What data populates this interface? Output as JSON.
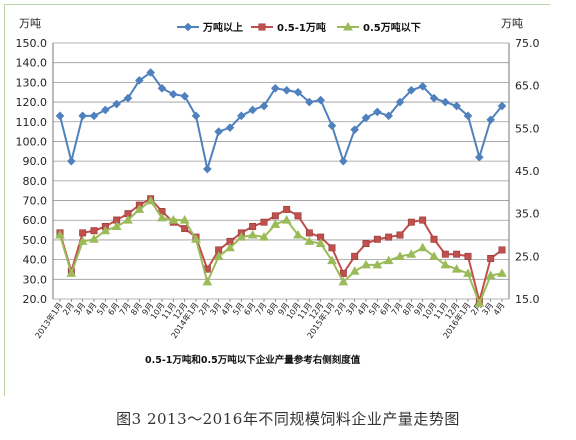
{
  "caption": "图3 2013～2016年不同规模饲料企业产量走势图",
  "chart_data": {
    "type": "line",
    "left_unit": "万吨",
    "right_unit": "万吨",
    "note": "0.5-1万吨和0.5万吨以下企业产量参考右侧刻度值",
    "y_left_range": [
      20,
      150
    ],
    "y_left_ticks": [
      "20.0",
      "30.0",
      "40.0",
      "50.0",
      "60.0",
      "70.0",
      "80.0",
      "90.0",
      "100.0",
      "110.0",
      "120.0",
      "130.0",
      "140.0",
      "150.0"
    ],
    "y_right_range": [
      15,
      75
    ],
    "y_right_ticks": [
      "15.0",
      "25.0",
      "35.0",
      "45.0",
      "55.0",
      "65.0",
      "75.0"
    ],
    "grid": true,
    "legend_position": "top",
    "x_tick_labels": [
      "2013年1月",
      "2月",
      "3月",
      "4月",
      "5月",
      "6月",
      "7月",
      "8月",
      "9月",
      "10月",
      "11月",
      "12月",
      "2014年1月",
      "2月",
      "3月",
      "4月",
      "5月",
      "6月",
      "7月",
      "8月",
      "9月",
      "10月",
      "11月",
      "12月",
      "2015年1月",
      "2月",
      "3月",
      "4月",
      "5月",
      "6月",
      "7月",
      "8月",
      "9月",
      "10月",
      "11月",
      "12月",
      "2016年1月",
      "2月",
      "3月",
      "4月"
    ],
    "series": [
      {
        "name": "万吨以上",
        "axis": "left",
        "color": "#4f81bd",
        "marker": "diamond",
        "values": [
          113,
          90,
          113,
          113,
          116,
          119,
          122,
          131,
          135,
          127,
          124,
          123,
          113,
          86,
          105,
          107,
          113,
          116,
          118,
          127,
          126,
          125,
          120,
          121,
          108,
          90,
          106,
          112,
          115,
          113,
          120,
          126,
          128,
          122,
          120,
          118,
          113,
          92,
          111,
          118
        ]
      },
      {
        "name": "0.5-1万吨",
        "axis": "right",
        "color": "#c0504d",
        "marker": "square",
        "values": [
          30.5,
          21.5,
          30.5,
          31,
          32,
          33.5,
          35,
          37,
          38.5,
          35.5,
          33,
          31.5,
          29.5,
          22,
          26.5,
          28.5,
          30.5,
          32,
          33,
          34.5,
          36,
          34.5,
          30.5,
          29.5,
          27,
          21,
          25,
          28,
          29,
          29.5,
          30,
          33,
          33.5,
          29,
          25.5,
          25.5,
          25,
          14.5,
          24.5,
          26.5
        ]
      },
      {
        "name": "0.5万吨以下",
        "axis": "right",
        "color": "#9bbb59",
        "marker": "triangle",
        "values": [
          30,
          21,
          28.5,
          29,
          31,
          32,
          33.5,
          36,
          38,
          34,
          33.5,
          33.5,
          29,
          19,
          25,
          27,
          29.5,
          30,
          29.5,
          32.5,
          33.5,
          30,
          28.5,
          28,
          24,
          19,
          21.5,
          23,
          23,
          24,
          25,
          25.5,
          27,
          25,
          23,
          22,
          21,
          14,
          20.5,
          21
        ]
      }
    ]
  }
}
